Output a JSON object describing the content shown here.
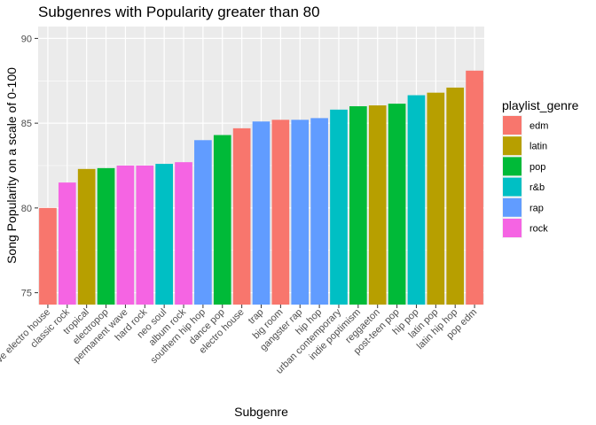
{
  "chart_data": {
    "type": "bar",
    "title": "Subgenres with Popularity greater than 80",
    "xlabel": "Subgenre",
    "ylabel": "Song Popularity on a scale of 0-100",
    "ylim": [
      74.3,
      90.7
    ],
    "yticks": [
      75,
      80,
      85,
      90
    ],
    "grid": true,
    "legend_position": "right",
    "legend_title": "playlist_genre",
    "legend": [
      {
        "name": "edm",
        "color": "#F8766D"
      },
      {
        "name": "latin",
        "color": "#B79F00"
      },
      {
        "name": "pop",
        "color": "#00BA38"
      },
      {
        "name": "r&b",
        "color": "#00BFC4"
      },
      {
        "name": "rap",
        "color": "#619CFF"
      },
      {
        "name": "rock",
        "color": "#F564E3"
      }
    ],
    "categories": [
      "progressive electro house",
      "classic rock",
      "tropical",
      "electropop",
      "permanent wave",
      "hard rock",
      "neo soul",
      "album rock",
      "southern hip hop",
      "dance pop",
      "electro house",
      "trap",
      "big room",
      "gangster rap",
      "hip hop",
      "urban contemporary",
      "indie poptimism",
      "reggaeton",
      "post-teen pop",
      "hip pop",
      "latin pop",
      "latin hip hop",
      "pop edm"
    ],
    "values": [
      80.0,
      81.5,
      82.3,
      82.35,
      82.5,
      82.5,
      82.6,
      82.7,
      84.0,
      84.3,
      84.7,
      85.1,
      85.2,
      85.2,
      85.3,
      85.8,
      86.0,
      86.05,
      86.15,
      86.65,
      86.8,
      87.1,
      88.1
    ],
    "genres": [
      "edm",
      "rock",
      "latin",
      "pop",
      "rock",
      "rock",
      "r&b",
      "rock",
      "rap",
      "pop",
      "edm",
      "rap",
      "edm",
      "rap",
      "rap",
      "r&b",
      "pop",
      "latin",
      "pop",
      "r&b",
      "latin",
      "latin",
      "edm"
    ]
  }
}
